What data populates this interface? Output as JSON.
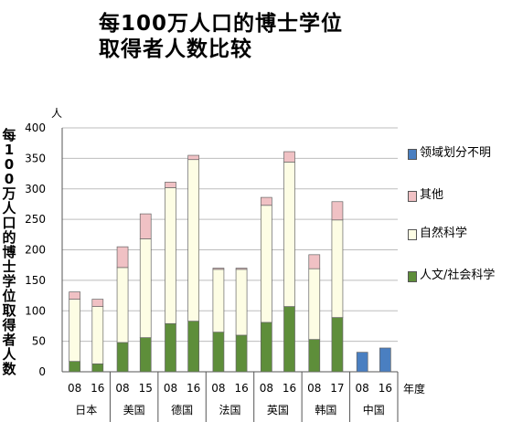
{
  "title_line1": "每100万人口的博士学位",
  "title_line2": "取得者人数比较",
  "chart_data": {
    "type": "bar",
    "stacked": true,
    "ylabel": "每100万人口的博士学位取得者人数",
    "yunit": "人",
    "xunit": "年度",
    "ylim": [
      0,
      400
    ],
    "yticks": [
      0,
      50,
      100,
      150,
      200,
      250,
      300,
      350,
      400
    ],
    "grid": true,
    "legend_position": "right",
    "groups": [
      {
        "name": "日本",
        "years": [
          "08",
          "16"
        ]
      },
      {
        "name": "美国",
        "years": [
          "08",
          "15"
        ]
      },
      {
        "name": "德国",
        "years": [
          "08",
          "16"
        ]
      },
      {
        "name": "法国",
        "years": [
          "08",
          "16"
        ]
      },
      {
        "name": "英国",
        "years": [
          "08",
          "16"
        ]
      },
      {
        "name": "韩国",
        "years": [
          "08",
          "17"
        ]
      },
      {
        "name": "中国",
        "years": [
          "08",
          "16"
        ]
      }
    ],
    "series": [
      {
        "name": "人文/社会科学",
        "color": "#5e8e3a",
        "values": [
          17,
          13,
          48,
          56,
          79,
          83,
          65,
          60,
          81,
          107,
          53,
          89,
          0,
          0
        ]
      },
      {
        "name": "自然科学",
        "color": "#fdfde4",
        "values": [
          102,
          94,
          123,
          162,
          223,
          265,
          103,
          108,
          192,
          237,
          116,
          160,
          0,
          0
        ]
      },
      {
        "name": "其他",
        "color": "#f0c1c4",
        "values": [
          12,
          12,
          34,
          41,
          9,
          7,
          2,
          2,
          13,
          17,
          23,
          30,
          0,
          0
        ]
      },
      {
        "name": "领域划分不明",
        "color": "#4a7fc1",
        "values": [
          0,
          0,
          0,
          0,
          0,
          0,
          0,
          0,
          0,
          0,
          0,
          0,
          32,
          39
        ]
      }
    ]
  }
}
